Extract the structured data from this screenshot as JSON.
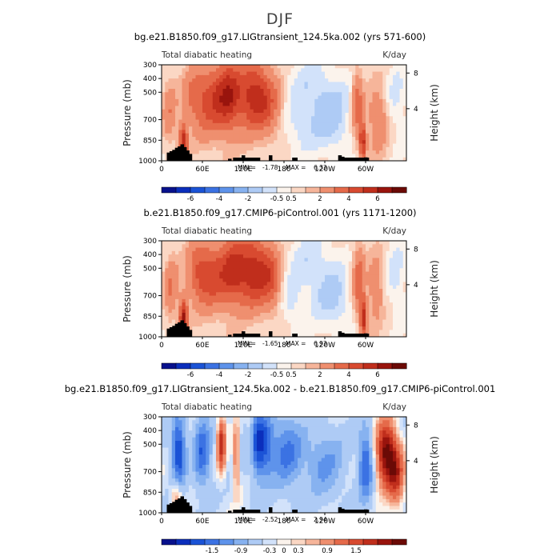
{
  "title": "DJF",
  "x_ticks": [
    "0",
    "60E",
    "120E",
    "180",
    "120W",
    "60W"
  ],
  "y_ticks": [
    300,
    400,
    500,
    700,
    850,
    1000
  ],
  "y_right_ticks": [
    8,
    4
  ],
  "ylabel": "Pressure  (mb)",
  "ylabel_right": "Height  (km)",
  "min_label": "MIN =",
  "max_label": "MAX =",
  "chart_data": [
    {
      "type": "heatmap",
      "title": "bg.e21.B1850.f09_g17.LIGtransient_124.5ka.002 (yrs 571-600)",
      "left_label": "Total diabatic heating",
      "right_label": "K/day",
      "min": "-1.78",
      "max": "6.33",
      "colorbar_levels": [
        -7,
        -6,
        -5,
        -4,
        -3,
        -2,
        -1,
        -0.5,
        0,
        0.5,
        1,
        2,
        3,
        4,
        5,
        6,
        7
      ],
      "colorbar_labels": [
        "-6",
        "-4",
        "-2",
        "-0.5",
        "0.5",
        "2",
        "4",
        "6"
      ],
      "xlim": [
        0,
        360
      ],
      "ylim": [
        1000,
        300
      ],
      "features": [
        {
          "kind": "warm",
          "lon": 45,
          "p": 520,
          "width": 12,
          "depth": 170,
          "amp": 1.2
        },
        {
          "kind": "warm",
          "lon": 72,
          "p": 560,
          "width": 28,
          "depth": 260,
          "amp": 3.4
        },
        {
          "kind": "warm",
          "lon": 100,
          "p": 520,
          "width": 18,
          "depth": 250,
          "amp": 3.5
        },
        {
          "kind": "warm",
          "lon": 135,
          "p": 520,
          "width": 22,
          "depth": 260,
          "amp": 4.2
        },
        {
          "kind": "warm",
          "lon": 160,
          "p": 600,
          "width": 18,
          "depth": 220,
          "amp": 2.0
        },
        {
          "kind": "warm",
          "lon": 32,
          "p": 860,
          "width": 6,
          "depth": 140,
          "amp": 4.5
        },
        {
          "kind": "warm",
          "lon": 12,
          "p": 650,
          "width": 10,
          "depth": 220,
          "amp": 1.6
        },
        {
          "kind": "warm",
          "lon": 288,
          "p": 600,
          "width": 8,
          "depth": 260,
          "amp": 2.6
        },
        {
          "kind": "warm",
          "lon": 296,
          "p": 860,
          "width": 5,
          "depth": 140,
          "amp": 4.2
        },
        {
          "kind": "warm",
          "lon": 318,
          "p": 700,
          "width": 14,
          "depth": 220,
          "amp": 2.0
        },
        {
          "kind": "cool",
          "lon": 220,
          "p": 480,
          "width": 38,
          "depth": 260,
          "amp": -0.9
        },
        {
          "kind": "cool",
          "lon": 250,
          "p": 700,
          "width": 30,
          "depth": 250,
          "amp": -1.4
        },
        {
          "kind": "cool",
          "lon": 200,
          "p": 780,
          "width": 22,
          "depth": 180,
          "amp": -0.7
        },
        {
          "kind": "cool",
          "lon": 345,
          "p": 560,
          "width": 15,
          "depth": 260,
          "amp": -0.8
        }
      ],
      "terrain": [
        [
          10,
          940
        ],
        [
          14,
          930
        ],
        [
          18,
          920
        ],
        [
          22,
          905
        ],
        [
          26,
          895
        ],
        [
          30,
          880
        ],
        [
          34,
          900
        ],
        [
          38,
          925
        ],
        [
          42,
          950
        ],
        [
          100,
          985
        ],
        [
          120,
          960
        ],
        [
          160,
          960
        ],
        [
          262,
          960
        ],
        [
          266,
          970
        ],
        [
          300,
          975
        ]
      ]
    },
    {
      "type": "heatmap",
      "title": "b.e21.B1850.f09_g17.CMIP6-piControl.001 (yrs 1171-1200)",
      "left_label": "Total diabatic heating",
      "right_label": "K/day",
      "min": "-1.65",
      "max": "6.93",
      "colorbar_levels": [
        -7,
        -6,
        -5,
        -4,
        -3,
        -2,
        -1,
        -0.5,
        0,
        0.5,
        1,
        2,
        3,
        4,
        5,
        6,
        7
      ],
      "colorbar_labels": [
        "-6",
        "-4",
        "-2",
        "-0.5",
        "0.5",
        "2",
        "4",
        "6"
      ],
      "xlim": [
        0,
        360
      ],
      "ylim": [
        1000,
        300
      ],
      "features": [
        {
          "kind": "warm",
          "lon": 55,
          "p": 530,
          "width": 18,
          "depth": 230,
          "amp": 2.8
        },
        {
          "kind": "warm",
          "lon": 80,
          "p": 560,
          "width": 20,
          "depth": 250,
          "amp": 2.9
        },
        {
          "kind": "warm",
          "lon": 105,
          "p": 520,
          "width": 16,
          "depth": 240,
          "amp": 3.2
        },
        {
          "kind": "warm",
          "lon": 135,
          "p": 520,
          "width": 24,
          "depth": 260,
          "amp": 4.6
        },
        {
          "kind": "warm",
          "lon": 162,
          "p": 580,
          "width": 15,
          "depth": 220,
          "amp": 2.2
        },
        {
          "kind": "warm",
          "lon": 32,
          "p": 860,
          "width": 6,
          "depth": 140,
          "amp": 5.0
        },
        {
          "kind": "warm",
          "lon": 14,
          "p": 650,
          "width": 10,
          "depth": 230,
          "amp": 1.8
        },
        {
          "kind": "warm",
          "lon": 290,
          "p": 600,
          "width": 9,
          "depth": 270,
          "amp": 2.6
        },
        {
          "kind": "warm",
          "lon": 297,
          "p": 860,
          "width": 5,
          "depth": 140,
          "amp": 4.4
        },
        {
          "kind": "warm",
          "lon": 315,
          "p": 650,
          "width": 10,
          "depth": 220,
          "amp": 2.0
        },
        {
          "kind": "cool",
          "lon": 220,
          "p": 480,
          "width": 36,
          "depth": 260,
          "amp": -1.0
        },
        {
          "kind": "cool",
          "lon": 255,
          "p": 740,
          "width": 28,
          "depth": 230,
          "amp": -1.2
        },
        {
          "kind": "cool",
          "lon": 190,
          "p": 760,
          "width": 16,
          "depth": 170,
          "amp": -0.8
        },
        {
          "kind": "cool",
          "lon": 345,
          "p": 560,
          "width": 14,
          "depth": 260,
          "amp": -0.9
        }
      ],
      "terrain": [
        [
          10,
          940
        ],
        [
          14,
          930
        ],
        [
          18,
          920
        ],
        [
          22,
          905
        ],
        [
          26,
          895
        ],
        [
          30,
          880
        ],
        [
          34,
          900
        ],
        [
          38,
          925
        ],
        [
          42,
          950
        ],
        [
          100,
          985
        ],
        [
          120,
          960
        ],
        [
          160,
          960
        ],
        [
          262,
          960
        ],
        [
          266,
          970
        ],
        [
          300,
          975
        ]
      ]
    },
    {
      "type": "heatmap",
      "title": "bg.e21.B1850.f09_g17.LIGtransient_124.5ka.002 - b.e21.B1850.f09_g17.CMIP6-piControl.001",
      "left_label": "Total diabatic heating",
      "right_label": "K/day",
      "min": "-2.52",
      "max": "2.94",
      "colorbar_levels": [
        -2.1,
        -1.8,
        -1.5,
        -1.2,
        -0.9,
        -0.6,
        -0.3,
        -0.15,
        0,
        0.15,
        0.3,
        0.6,
        0.9,
        1.2,
        1.5,
        1.8,
        2.1
      ],
      "colorbar_labels": [
        "-1.5",
        "-0.9",
        "-0.3",
        "0",
        "0.3",
        "0.9",
        "1.5"
      ],
      "xlim": [
        0,
        360
      ],
      "ylim": [
        1000,
        300
      ],
      "features": [
        {
          "kind": "warm",
          "lon": 88,
          "p": 500,
          "width": 6,
          "depth": 200,
          "amp": 1.6
        },
        {
          "kind": "warm",
          "lon": 110,
          "p": 600,
          "width": 5,
          "depth": 260,
          "amp": 0.9
        },
        {
          "kind": "warm",
          "lon": 130,
          "p": 480,
          "width": 6,
          "depth": 200,
          "amp": 0.7
        },
        {
          "kind": "warm",
          "lon": 330,
          "p": 560,
          "width": 14,
          "depth": 230,
          "amp": 2.2
        },
        {
          "kind": "warm",
          "lon": 345,
          "p": 720,
          "width": 12,
          "depth": 220,
          "amp": 1.4
        },
        {
          "kind": "warm",
          "lon": 22,
          "p": 880,
          "width": 8,
          "depth": 140,
          "amp": 0.9
        },
        {
          "kind": "cool",
          "lon": 25,
          "p": 560,
          "width": 10,
          "depth": 260,
          "amp": -1.6
        },
        {
          "kind": "cool",
          "lon": 60,
          "p": 560,
          "width": 12,
          "depth": 260,
          "amp": -1.2
        },
        {
          "kind": "cool",
          "lon": 145,
          "p": 500,
          "width": 18,
          "depth": 240,
          "amp": -1.7
        },
        {
          "kind": "cool",
          "lon": 185,
          "p": 560,
          "width": 22,
          "depth": 260,
          "amp": -1.0
        },
        {
          "kind": "cool",
          "lon": 240,
          "p": 640,
          "width": 28,
          "depth": 250,
          "amp": -0.7
        },
        {
          "kind": "cool",
          "lon": 300,
          "p": 650,
          "width": 10,
          "depth": 260,
          "amp": -1.3
        }
      ],
      "terrain": [
        [
          10,
          940
        ],
        [
          14,
          930
        ],
        [
          18,
          920
        ],
        [
          22,
          905
        ],
        [
          26,
          895
        ],
        [
          30,
          880
        ],
        [
          34,
          900
        ],
        [
          38,
          925
        ],
        [
          42,
          950
        ],
        [
          100,
          985
        ],
        [
          120,
          960
        ],
        [
          160,
          960
        ],
        [
          262,
          960
        ],
        [
          266,
          970
        ],
        [
          300,
          975
        ]
      ]
    }
  ],
  "colors": {
    "cool": [
      "#08118c",
      "#0b2ebc",
      "#1b53d6",
      "#3b72e3",
      "#5e93eb",
      "#87b2f0",
      "#aecbf5",
      "#d2e2fa"
    ],
    "neutral": "#fbf3ec",
    "warm": [
      "#fbd7c4",
      "#f6b59a",
      "#ef8f6f",
      "#e56a4a",
      "#d84a30",
      "#c02e1c",
      "#99140d",
      "#6b0a06"
    ],
    "terrain": "#000000"
  }
}
